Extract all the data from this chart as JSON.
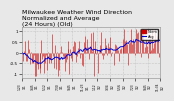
{
  "title": "Milwaukee Weather Wind Direction\nNormalized and Average\n(24 Hours) (Old)",
  "title_fontsize": 4.5,
  "background_color": "#e8e8e8",
  "plot_bg_color": "#e8e8e8",
  "bar_color": "#cc0000",
  "line_color": "#0000cc",
  "ylim": [
    -1.2,
    1.2
  ],
  "ytick_labels": [
    "1",
    "0.5",
    "0",
    "-0.5",
    "-1"
  ],
  "ytick_values": [
    1.0,
    0.5,
    0.0,
    -0.5,
    -1.0
  ],
  "n_points": 144,
  "seed": 42,
  "legend_bar_color": "#cc0000",
  "legend_line_color": "#0000cc",
  "ylabel_fontsize": 3.5,
  "tick_fontsize": 3.0
}
